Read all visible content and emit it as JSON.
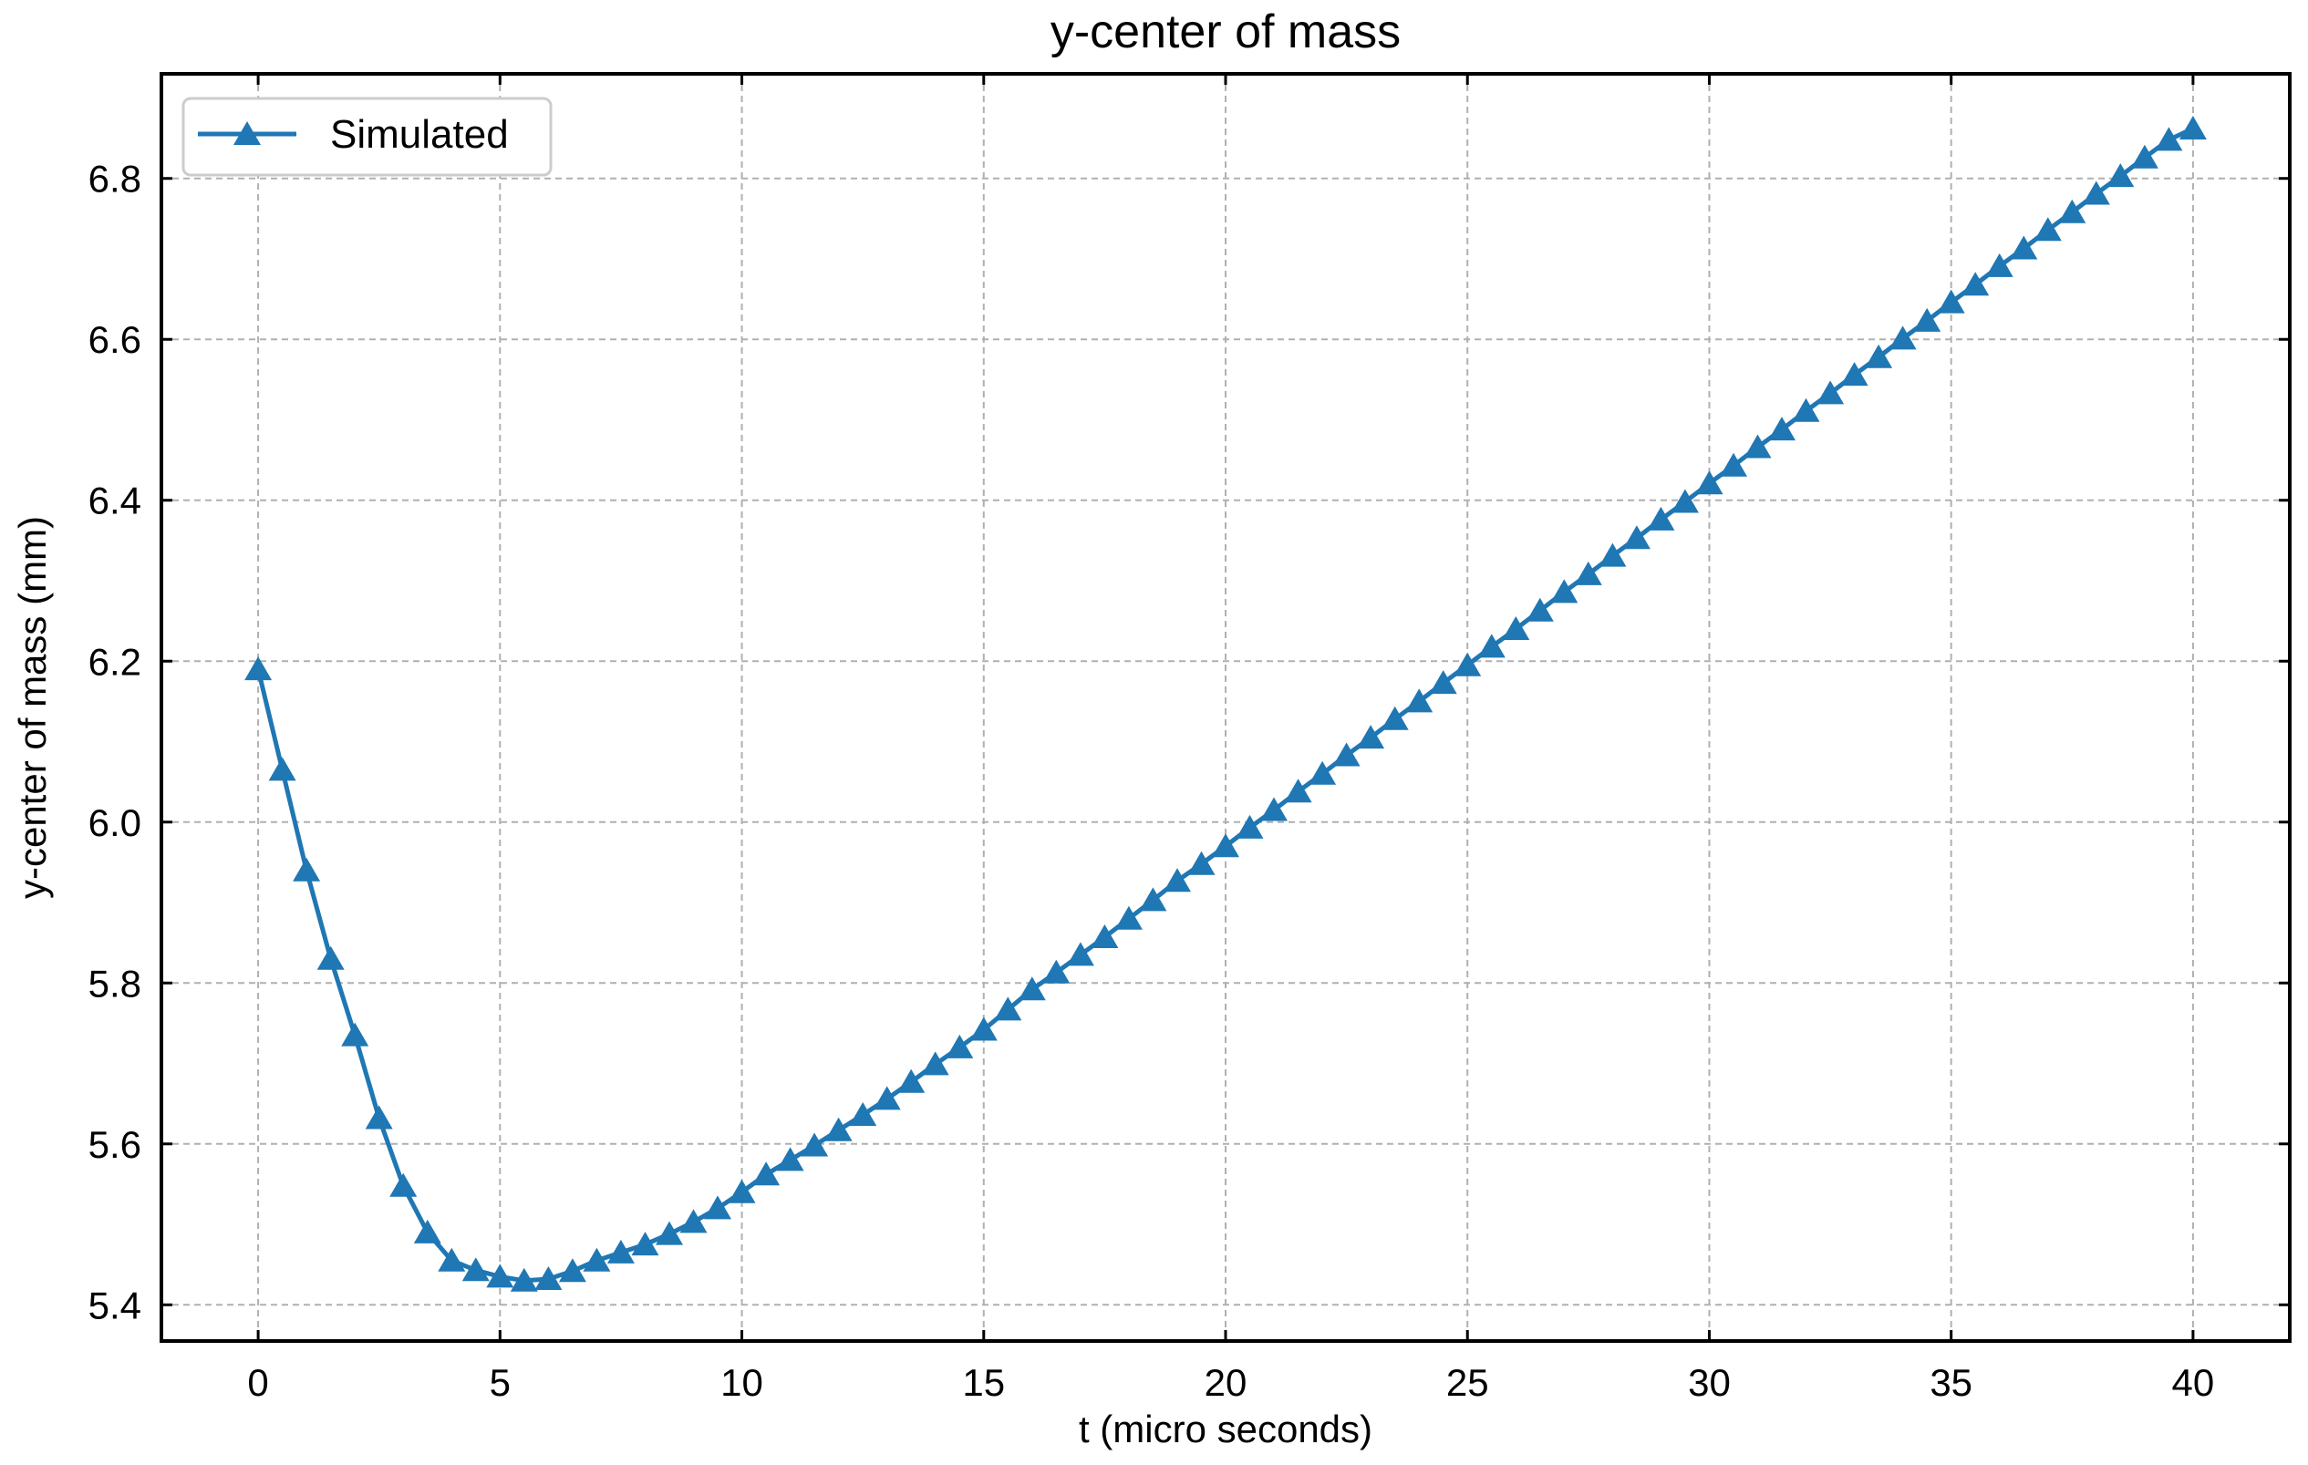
{
  "chart_data": {
    "type": "line",
    "title": "y-center of mass",
    "xlabel": "t (micro seconds)",
    "ylabel": "y-center of mass (mm)",
    "xlim": [
      -2,
      42
    ],
    "ylim": [
      5.355,
      6.93
    ],
    "xticks": [
      0,
      5,
      10,
      15,
      20,
      25,
      30,
      35,
      40
    ],
    "xtick_labels": [
      "0",
      "5",
      "10",
      "15",
      "20",
      "25",
      "30",
      "35",
      "40"
    ],
    "yticks": [
      5.4,
      5.6,
      5.8,
      6.0,
      6.2,
      6.4,
      6.6,
      6.8
    ],
    "ytick_labels": [
      "5.4",
      "5.6",
      "5.8",
      "6.0",
      "6.2",
      "6.4",
      "6.6",
      "6.8"
    ],
    "grid": true,
    "legend_position": "upper-left",
    "marker": "triangle-up",
    "color": "#1f77b4",
    "series": [
      {
        "name": "Simulated",
        "x": [
          0.0,
          0.5,
          1.0,
          1.5,
          2.0,
          2.5,
          3.0,
          3.5,
          4.0,
          4.5,
          5.0,
          5.5,
          6.0,
          6.5,
          7.0,
          7.5,
          8.0,
          8.5,
          9.0,
          9.5,
          10.0,
          10.5,
          11.0,
          11.5,
          12.0,
          12.5,
          13.0,
          13.5,
          14.0,
          14.5,
          15.0,
          15.5,
          16.0,
          16.5,
          17.0,
          17.5,
          18.0,
          18.5,
          19.0,
          19.5,
          20.0,
          20.5,
          21.0,
          21.5,
          22.0,
          22.5,
          23.0,
          23.5,
          24.0,
          24.5,
          25.0,
          25.5,
          26.0,
          26.5,
          27.0,
          27.5,
          28.0,
          28.5,
          29.0,
          29.5,
          30.0,
          30.5,
          31.0,
          31.5,
          32.0,
          32.5,
          33.0,
          33.5,
          34.0,
          34.5,
          35.0,
          35.5,
          36.0,
          36.5,
          37.0,
          37.5,
          38.0,
          38.5,
          39.0,
          39.5,
          40.0
        ],
        "y": [
          6.19,
          6.065,
          5.94,
          5.83,
          5.735,
          5.632,
          5.548,
          5.49,
          5.455,
          5.443,
          5.435,
          5.43,
          5.432,
          5.442,
          5.455,
          5.465,
          5.475,
          5.488,
          5.503,
          5.52,
          5.54,
          5.562,
          5.58,
          5.598,
          5.617,
          5.636,
          5.656,
          5.677,
          5.699,
          5.72,
          5.742,
          5.767,
          5.792,
          5.813,
          5.835,
          5.857,
          5.88,
          5.903,
          5.927,
          5.948,
          5.97,
          5.993,
          6.015,
          6.038,
          6.06,
          6.083,
          6.105,
          6.128,
          6.15,
          6.173,
          6.195,
          6.218,
          6.24,
          6.263,
          6.286,
          6.308,
          6.331,
          6.353,
          6.376,
          6.398,
          6.421,
          6.443,
          6.466,
          6.488,
          6.511,
          6.533,
          6.556,
          6.578,
          6.601,
          6.623,
          6.646,
          6.668,
          6.691,
          6.713,
          6.736,
          6.758,
          6.781,
          6.803,
          6.826,
          6.848,
          6.862
        ]
      }
    ]
  }
}
